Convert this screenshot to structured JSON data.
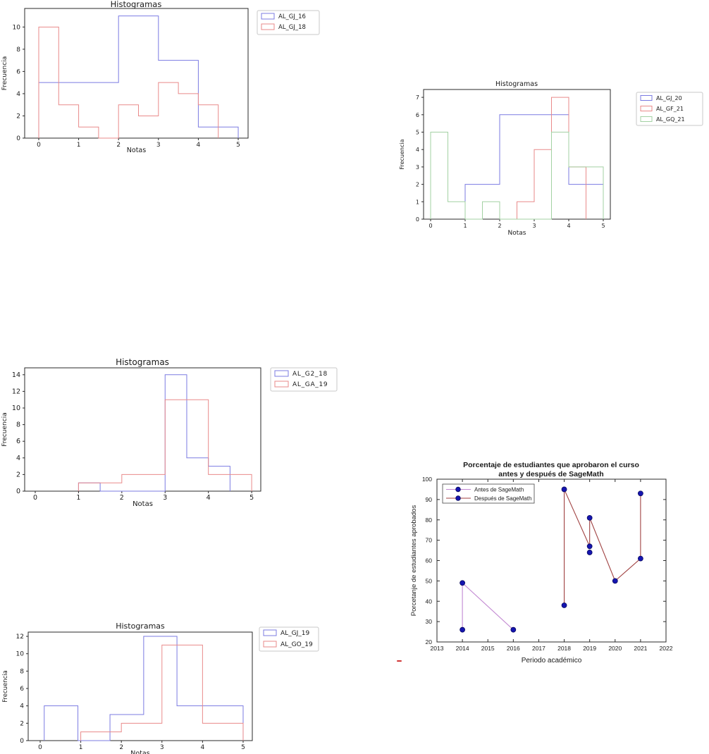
{
  "page": {
    "background": "#ffffff"
  },
  "stray_mark": {
    "color": "#d03434"
  },
  "palette": {
    "hist_blue": "#7b7be2",
    "hist_red": "#e98a8a",
    "hist_green": "#a3d1a3",
    "antes_line": "#c288d2",
    "despues_line": "#a04242",
    "marker_fill": "#1515b0",
    "marker_edge": "#0a0a60",
    "spine": "#2a2a2a",
    "text": "#1a1a1a",
    "legend_border": "#c9c9c9"
  },
  "chart_data": [
    {
      "id": "hist_top_left",
      "type": "histogram",
      "title": "Histogramas",
      "xlabel": "Notas",
      "ylabel": "Frecuencia",
      "xticks": [
        0,
        1,
        2,
        3,
        4,
        5
      ],
      "yticks": [
        0,
        2,
        4,
        6,
        8,
        10
      ],
      "xlim": [
        -0.353,
        5.247
      ],
      "ylim": [
        0,
        11.67
      ],
      "grid": false,
      "legend_position": "outside-right",
      "series": [
        {
          "name": "AL_GJ_16",
          "color": "#7b7be2",
          "edges": [
            0,
            2,
            3,
            4,
            5
          ],
          "counts": [
            5,
            11,
            7,
            1
          ]
        },
        {
          "name": "AL_GJ_18",
          "color": "#e98a8a",
          "edges": [
            0,
            0.5,
            1,
            1.5,
            2,
            2.5,
            3,
            3.5,
            4,
            4.5
          ],
          "counts": [
            10,
            3,
            1,
            0,
            3,
            2,
            5,
            4,
            3
          ]
        }
      ]
    },
    {
      "id": "hist_top_right",
      "type": "histogram",
      "title": "Histogramas",
      "xlabel": "Notas",
      "ylabel": "Frecuencia",
      "xticks": [
        0,
        1,
        2,
        3,
        4,
        5
      ],
      "yticks": [
        0,
        1,
        2,
        3,
        4,
        5,
        6,
        7
      ],
      "xlim": [
        -0.204,
        5.204
      ],
      "ylim": [
        0,
        7.45
      ],
      "grid": false,
      "legend_position": "outside-right",
      "series": [
        {
          "name": "AL_GJ_20",
          "color": "#7b7be2",
          "edges": [
            1,
            2,
            4,
            5
          ],
          "counts": [
            2,
            6,
            2
          ]
        },
        {
          "name": "AL_GF_21",
          "color": "#e98a8a",
          "edges": [
            2.5,
            3,
            3.5,
            4,
            4.5
          ],
          "counts": [
            1,
            4,
            7,
            3
          ]
        },
        {
          "name": "AL_GQ_21",
          "color": "#a3d1a3",
          "edges": [
            0,
            0.5,
            1,
            1.5,
            2,
            3.5,
            4,
            5
          ],
          "counts": [
            5,
            1,
            0,
            1,
            0,
            5,
            3
          ]
        }
      ]
    },
    {
      "id": "hist_mid_left",
      "type": "histogram",
      "title": "Histogramas",
      "xlabel": "Notas",
      "ylabel": "Frecuencia",
      "xticks": [
        0,
        1,
        2,
        3,
        4,
        5
      ],
      "yticks": [
        0,
        2,
        4,
        6,
        8,
        10,
        12,
        14
      ],
      "xlim": [
        -0.244,
        5.21
      ],
      "ylim": [
        0,
        14.83
      ],
      "grid": false,
      "legend_position": "outside-right",
      "series": [
        {
          "name": "AL_G2_18",
          "color": "#7b7be2",
          "edges": [
            1,
            1.5,
            3,
            3.5,
            4,
            4.5
          ],
          "counts": [
            1,
            0,
            14,
            4,
            3
          ]
        },
        {
          "name": "AL_GA_19",
          "color": "#e98a8a",
          "edges": [
            1,
            2,
            3,
            4,
            5
          ],
          "counts": [
            1,
            2,
            11,
            2
          ]
        }
      ]
    },
    {
      "id": "hist_bottom_left",
      "type": "histogram",
      "title": "Histogramas",
      "xlabel": "Notas",
      "ylabel": "Frecuencia",
      "xticks": [
        0,
        1,
        2,
        3,
        4,
        5
      ],
      "yticks": [
        0,
        2,
        4,
        6,
        8,
        10,
        12
      ],
      "xlim": [
        -0.295,
        5.226
      ],
      "ylim": [
        0,
        12.49
      ],
      "grid": false,
      "legend_position": "outside-right",
      "series": [
        {
          "name": "AL_GJ_19",
          "color": "#7b7be2",
          "edges": [
            0.1,
            0.93,
            1.72,
            2.55,
            3.37,
            5.0
          ],
          "counts": [
            4,
            0,
            3,
            12,
            4
          ]
        },
        {
          "name": "AL_GO_19",
          "color": "#e98a8a",
          "edges": [
            1,
            2,
            3,
            4,
            5
          ],
          "counts": [
            1,
            2,
            11,
            2
          ]
        }
      ]
    },
    {
      "id": "line_sagemath",
      "type": "line",
      "title_lines": [
        "Porcentaje de estudiantes que aprobaron el curso",
        "antes y después de SageMath"
      ],
      "xlabel": "Periodo académico",
      "ylabel": "Porcetanje de estudiantes aprobados",
      "xticks": [
        2013,
        2014,
        2015,
        2016,
        2017,
        2018,
        2019,
        2020,
        2021,
        2022
      ],
      "yticks": [
        20,
        30,
        40,
        50,
        60,
        70,
        80,
        90,
        100
      ],
      "xlim": [
        2013,
        2022
      ],
      "ylim": [
        20,
        100
      ],
      "grid": false,
      "legend_position": "inside-top-left",
      "legend": [
        {
          "label": "Antes de SageMath",
          "color": "#c288d2"
        },
        {
          "label": "Después de SageMath",
          "color": "#a04242"
        }
      ],
      "marker": {
        "fill": "#1515b0",
        "edge": "#0a0a60"
      },
      "lines": [
        {
          "color": "#c288d2",
          "points": [
            [
              2014,
              26
            ],
            [
              2014,
              49
            ],
            [
              2016,
              26
            ]
          ]
        },
        {
          "color": "#a04242",
          "points": [
            [
              2018,
              38
            ],
            [
              2018,
              95
            ],
            [
              2019,
              67
            ],
            [
              2019,
              81
            ],
            [
              2020,
              50
            ],
            [
              2021,
              61
            ],
            [
              2021,
              93
            ]
          ]
        }
      ],
      "markers": [
        [
          2014,
          26
        ],
        [
          2014,
          49
        ],
        [
          2016,
          26
        ],
        [
          2018,
          38
        ],
        [
          2018,
          95
        ],
        [
          2019,
          64
        ],
        [
          2019,
          67
        ],
        [
          2019,
          81
        ],
        [
          2020,
          50
        ],
        [
          2021,
          61
        ],
        [
          2021,
          93
        ]
      ]
    }
  ]
}
